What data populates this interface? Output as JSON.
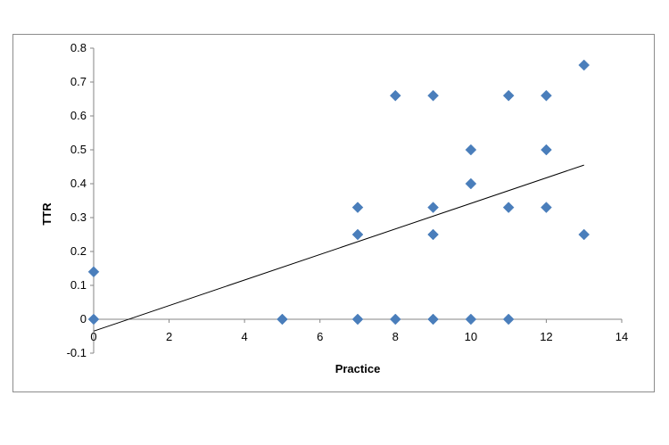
{
  "chart_data": {
    "type": "scatter",
    "title": "",
    "xlabel": "Practice",
    "ylabel": "TTR",
    "xlim": [
      0,
      14
    ],
    "ylim": [
      -0.1,
      0.8
    ],
    "x_ticks": [
      0,
      2,
      4,
      6,
      8,
      10,
      12,
      14
    ],
    "y_ticks": [
      -0.1,
      0,
      0.1,
      0.2,
      0.3,
      0.4,
      0.5,
      0.6,
      0.7,
      0.8
    ],
    "x_tick_labels": [
      "0",
      "2",
      "4",
      "6",
      "8",
      "10",
      "12",
      "14"
    ],
    "y_tick_labels": [
      "-0.1",
      "0",
      "0.1",
      "0.2",
      "0.3",
      "0.4",
      "0.5",
      "0.6",
      "0.7",
      "0.8"
    ],
    "grid": false,
    "legend": "none",
    "series": [
      {
        "marker": "diamond",
        "color": "#4a7ebb",
        "points": [
          [
            0,
            0.14
          ],
          [
            0,
            0
          ],
          [
            5,
            0
          ],
          [
            7,
            0.33
          ],
          [
            7,
            0.25
          ],
          [
            7,
            0
          ],
          [
            8,
            0.66
          ],
          [
            8,
            0
          ],
          [
            9,
            0.66
          ],
          [
            9,
            0.33
          ],
          [
            9,
            0.25
          ],
          [
            9,
            0
          ],
          [
            10,
            0.5
          ],
          [
            10,
            0.4
          ],
          [
            10,
            0
          ],
          [
            11,
            0.66
          ],
          [
            11,
            0.33
          ],
          [
            11,
            0
          ],
          [
            12,
            0.66
          ],
          [
            12,
            0.5
          ],
          [
            12,
            0.33
          ],
          [
            13,
            0.75
          ],
          [
            13,
            0.25
          ]
        ]
      }
    ],
    "trendline": {
      "type": "linear",
      "color": "#000000",
      "points": [
        [
          0,
          -0.035
        ],
        [
          13,
          0.455
        ]
      ]
    }
  }
}
